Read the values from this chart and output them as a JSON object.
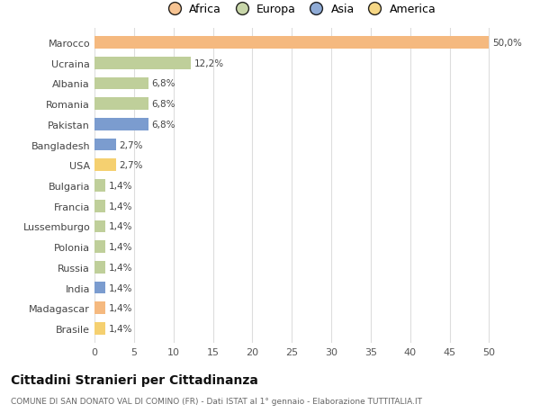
{
  "countries": [
    "Marocco",
    "Ucraina",
    "Albania",
    "Romania",
    "Pakistan",
    "Bangladesh",
    "USA",
    "Bulgaria",
    "Francia",
    "Lussemburgo",
    "Polonia",
    "Russia",
    "India",
    "Madagascar",
    "Brasile"
  ],
  "values": [
    50.0,
    12.2,
    6.8,
    6.8,
    6.8,
    2.7,
    2.7,
    1.4,
    1.4,
    1.4,
    1.4,
    1.4,
    1.4,
    1.4,
    1.4
  ],
  "labels": [
    "50,0%",
    "12,2%",
    "6,8%",
    "6,8%",
    "6,8%",
    "2,7%",
    "2,7%",
    "1,4%",
    "1,4%",
    "1,4%",
    "1,4%",
    "1,4%",
    "1,4%",
    "1,4%",
    "1,4%"
  ],
  "continents": [
    "Africa",
    "Europa",
    "Europa",
    "Europa",
    "Asia",
    "Asia",
    "America",
    "Europa",
    "Europa",
    "Europa",
    "Europa",
    "Europa",
    "Asia",
    "Africa",
    "America"
  ],
  "continent_colors": {
    "Africa": "#F5B97F",
    "Europa": "#BFCF9A",
    "Asia": "#7B9CCF",
    "America": "#F5D070"
  },
  "legend_continents": [
    "Africa",
    "Europa",
    "Asia",
    "America"
  ],
  "legend_colors": [
    "#F5B97F",
    "#BFCF9A",
    "#7B9CCF",
    "#F5D070"
  ],
  "title": "Cittadini Stranieri per Cittadinanza",
  "subtitle": "COMUNE DI SAN DONATO VAL DI COMINO (FR) - Dati ISTAT al 1° gennaio - Elaborazione TUTTITALIA.IT",
  "xlim": [
    0,
    52
  ],
  "xticks": [
    0,
    5,
    10,
    15,
    20,
    25,
    30,
    35,
    40,
    45,
    50
  ],
  "background_color": "#ffffff",
  "grid_color": "#dddddd",
  "bar_height": 0.6
}
